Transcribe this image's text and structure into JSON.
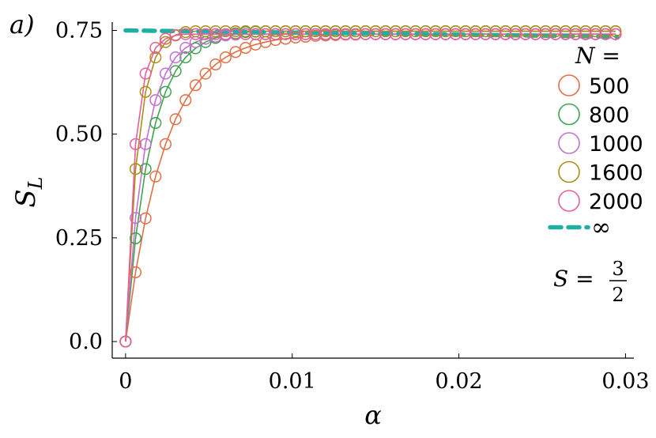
{
  "chart_data": {
    "type": "line",
    "panel_label": "a)",
    "xlabel": "α",
    "ylabel": "S",
    "ylabel_sub": "L",
    "xlim": [
      -0.0008,
      0.0305
    ],
    "ylim": [
      -0.04,
      0.77
    ],
    "xticks": [
      0,
      0.01,
      0.02,
      0.03
    ],
    "xtick_labels": [
      "0",
      "0.01",
      "0.02",
      "0.03"
    ],
    "yticks": [
      0,
      0.25,
      0.5,
      0.75
    ],
    "ytick_labels": [
      "0.0",
      "0.25",
      "0.50",
      "0.75"
    ],
    "grid": false,
    "legend_position": "right",
    "legend_title": "N =",
    "annotation": {
      "lhs": "S =",
      "numerator": "3",
      "denominator": "2"
    },
    "x": [
      0,
      0.0006,
      0.0012,
      0.0018,
      0.0024,
      0.003,
      0.0036,
      0.0042,
      0.0048,
      0.0054,
      0.006,
      0.0066,
      0.0072,
      0.0078,
      0.0084,
      0.009,
      0.0096,
      0.0102,
      0.0108,
      0.0114,
      0.012,
      0.0126,
      0.0132,
      0.0138,
      0.0144,
      0.015,
      0.0156,
      0.0162,
      0.0168,
      0.0174,
      0.018,
      0.0186,
      0.0192,
      0.0198,
      0.0204,
      0.021,
      0.0216,
      0.0222,
      0.0228,
      0.0234,
      0.024,
      0.0246,
      0.0252,
      0.0258,
      0.0264,
      0.027,
      0.0276,
      0.0282,
      0.0288,
      0.0294
    ],
    "series": [
      {
        "name": "500",
        "color": "#e26f46",
        "values": [
          0,
          0.167,
          0.297,
          0.398,
          0.476,
          0.536,
          0.582,
          0.618,
          0.646,
          0.668,
          0.685,
          0.698,
          0.708,
          0.716,
          0.722,
          0.727,
          0.73,
          0.733,
          0.735,
          0.737,
          0.738,
          0.739,
          0.74,
          0.74,
          0.741,
          0.741,
          0.741,
          0.741,
          0.741,
          0.741,
          0.741,
          0.741,
          0.741,
          0.741,
          0.741,
          0.741,
          0.741,
          0.741,
          0.741,
          0.741,
          0.741,
          0.741,
          0.741,
          0.741,
          0.741,
          0.741,
          0.741,
          0.741,
          0.741,
          0.741
        ]
      },
      {
        "name": "800",
        "color": "#3da44d",
        "values": [
          0,
          0.249,
          0.416,
          0.527,
          0.602,
          0.652,
          0.685,
          0.707,
          0.722,
          0.732,
          0.739,
          0.743,
          0.746,
          0.747,
          0.748,
          0.748,
          0.748,
          0.748,
          0.748,
          0.748,
          0.748,
          0.748,
          0.748,
          0.748,
          0.748,
          0.748,
          0.748,
          0.748,
          0.748,
          0.748,
          0.748,
          0.748,
          0.748,
          0.748,
          0.748,
          0.748,
          0.748,
          0.748,
          0.748,
          0.748,
          0.748,
          0.748,
          0.748,
          0.748,
          0.748,
          0.748,
          0.748,
          0.748,
          0.748,
          0.748
        ]
      },
      {
        "name": "1000",
        "color": "#c271d2",
        "values": [
          0,
          0.298,
          0.476,
          0.582,
          0.646,
          0.685,
          0.708,
          0.722,
          0.73,
          0.735,
          0.738,
          0.74,
          0.741,
          0.741,
          0.741,
          0.741,
          0.741,
          0.741,
          0.741,
          0.741,
          0.741,
          0.741,
          0.741,
          0.741,
          0.741,
          0.741,
          0.741,
          0.741,
          0.741,
          0.741,
          0.741,
          0.741,
          0.741,
          0.741,
          0.741,
          0.741,
          0.741,
          0.741,
          0.741,
          0.741,
          0.741,
          0.741,
          0.741,
          0.741,
          0.741,
          0.741,
          0.741,
          0.741,
          0.741,
          0.741
        ]
      },
      {
        "name": "1600",
        "color": "#ac8e18",
        "values": [
          0,
          0.416,
          0.602,
          0.685,
          0.722,
          0.739,
          0.746,
          0.748,
          0.748,
          0.748,
          0.748,
          0.748,
          0.748,
          0.748,
          0.748,
          0.748,
          0.748,
          0.748,
          0.748,
          0.748,
          0.748,
          0.748,
          0.748,
          0.748,
          0.748,
          0.748,
          0.748,
          0.748,
          0.748,
          0.748,
          0.748,
          0.748,
          0.748,
          0.748,
          0.748,
          0.748,
          0.748,
          0.748,
          0.748,
          0.748,
          0.748,
          0.748,
          0.748,
          0.748,
          0.748,
          0.748,
          0.748,
          0.748,
          0.748,
          0.748
        ]
      },
      {
        "name": "2000",
        "color": "#e65f9b",
        "values": [
          0,
          0.476,
          0.646,
          0.708,
          0.73,
          0.738,
          0.741,
          0.741,
          0.741,
          0.741,
          0.741,
          0.741,
          0.741,
          0.741,
          0.741,
          0.741,
          0.741,
          0.741,
          0.741,
          0.741,
          0.741,
          0.741,
          0.741,
          0.741,
          0.741,
          0.741,
          0.741,
          0.741,
          0.741,
          0.741,
          0.741,
          0.741,
          0.741,
          0.741,
          0.741,
          0.741,
          0.741,
          0.741,
          0.741,
          0.741,
          0.741,
          0.741,
          0.741,
          0.741,
          0.741,
          0.741,
          0.741,
          0.741,
          0.741,
          0.741
        ]
      }
    ],
    "reference": {
      "name": "∞",
      "color": "#20b0a3",
      "x": [
        0,
        0.0295
      ],
      "values": [
        0.75,
        0.735
      ],
      "style": "dashed"
    }
  }
}
